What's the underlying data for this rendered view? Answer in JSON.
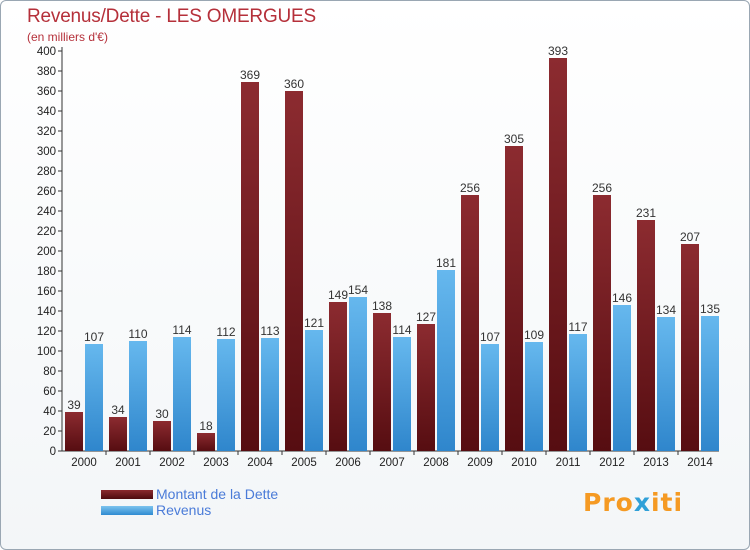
{
  "chart_data": {
    "type": "bar",
    "title": "Revenus/Dette - LES OMERGUES",
    "subtitle": "(en milliers d'€)",
    "categories": [
      "2000",
      "2001",
      "2002",
      "2003",
      "2004",
      "2005",
      "2006",
      "2007",
      "2008",
      "2009",
      "2010",
      "2011",
      "2012",
      "2013",
      "2014"
    ],
    "series": [
      {
        "name": "Montant de la Dette",
        "values": [
          39,
          34,
          30,
          18,
          369,
          360,
          149,
          138,
          127,
          256,
          305,
          393,
          256,
          231,
          207
        ],
        "color": "#6e1b20"
      },
      {
        "name": "Revenus",
        "values": [
          107,
          110,
          114,
          112,
          113,
          121,
          154,
          114,
          181,
          107,
          109,
          117,
          146,
          134,
          135
        ],
        "color": "#4aa5e6"
      }
    ],
    "ylim": [
      0,
      400
    ],
    "yticks": [
      0,
      20,
      40,
      60,
      80,
      100,
      120,
      140,
      160,
      180,
      200,
      220,
      240,
      260,
      280,
      300,
      320,
      340,
      360,
      380,
      400
    ],
    "grid": false,
    "legend_position": "bottom-left"
  },
  "logo": {
    "brand": "Proxiti"
  }
}
